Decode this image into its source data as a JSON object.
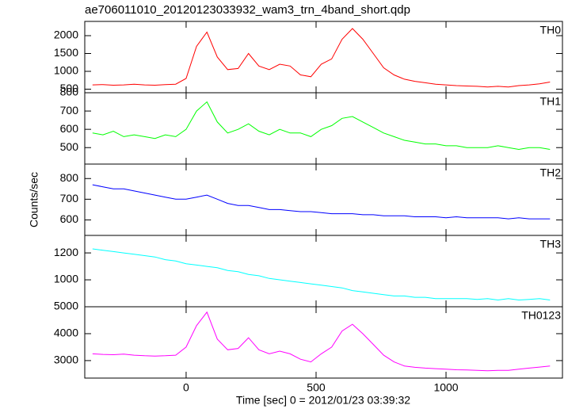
{
  "chart_data": {
    "type": "line",
    "title": "ae706011010_20120123033932_wam3_trn_4band_short.qdp",
    "xlabel": "Time [sec] 0 = 2012/01/23 03:39:32",
    "ylabel": "Counts/sec",
    "x": [
      -360,
      -320,
      -280,
      -240,
      -200,
      -160,
      -120,
      -80,
      -40,
      0,
      40,
      80,
      120,
      160,
      200,
      240,
      280,
      320,
      360,
      400,
      440,
      480,
      520,
      560,
      600,
      640,
      680,
      720,
      760,
      800,
      840,
      880,
      920,
      960,
      1000,
      1040,
      1080,
      1120,
      1160,
      1200,
      1240,
      1280,
      1320,
      1360,
      1400
    ],
    "xlim": [
      -390,
      1448
    ],
    "xticks": [
      0,
      500,
      1000
    ],
    "panels": [
      {
        "name": "TH0",
        "color": "#ff0000",
        "ylim": [
          400,
          2400
        ],
        "yticks": [
          500,
          1000,
          1500,
          2000
        ],
        "values": [
          620,
          630,
          610,
          620,
          640,
          620,
          610,
          630,
          640,
          800,
          1700,
          2100,
          1400,
          1050,
          1080,
          1500,
          1150,
          1050,
          1200,
          1150,
          900,
          850,
          1200,
          1350,
          1900,
          2200,
          1900,
          1500,
          1100,
          900,
          780,
          720,
          680,
          640,
          620,
          600,
          590,
          580,
          560,
          580,
          560,
          600,
          620,
          650,
          700
        ]
      },
      {
        "name": "TH1",
        "color": "#00ff00",
        "ylim": [
          410,
          800
        ],
        "yticks": [
          500,
          600,
          700,
          800
        ],
        "values": [
          580,
          570,
          590,
          560,
          570,
          560,
          550,
          570,
          560,
          600,
          700,
          750,
          640,
          580,
          600,
          630,
          590,
          570,
          600,
          580,
          580,
          560,
          600,
          620,
          660,
          670,
          640,
          610,
          580,
          560,
          540,
          530,
          520,
          520,
          510,
          510,
          500,
          500,
          500,
          510,
          500,
          490,
          500,
          500,
          490
        ]
      },
      {
        "name": "TH2",
        "color": "#0000ff",
        "ylim": [
          525,
          870
        ],
        "yticks": [
          600,
          700,
          800
        ],
        "values": [
          770,
          760,
          750,
          750,
          740,
          730,
          720,
          710,
          700,
          700,
          710,
          720,
          700,
          680,
          670,
          670,
          660,
          650,
          650,
          645,
          640,
          640,
          635,
          630,
          630,
          630,
          625,
          625,
          620,
          620,
          620,
          615,
          615,
          615,
          610,
          615,
          610,
          610,
          610,
          610,
          605,
          610,
          605,
          605,
          605
        ]
      },
      {
        "name": "TH3",
        "color": "#00ffff",
        "ylim": [
          800,
          1330
        ],
        "yticks": [
          1000,
          1200
        ],
        "values": [
          1230,
          1220,
          1210,
          1200,
          1190,
          1180,
          1170,
          1150,
          1140,
          1120,
          1110,
          1100,
          1090,
          1070,
          1060,
          1040,
          1030,
          1010,
          1000,
          990,
          980,
          970,
          960,
          950,
          940,
          920,
          910,
          900,
          890,
          880,
          880,
          870,
          870,
          860,
          860,
          860,
          860,
          855,
          860,
          850,
          860,
          850,
          855,
          860,
          850
        ]
      },
      {
        "name": "TH0123",
        "color": "#ff00ff",
        "ylim": [
          2350,
          5000
        ],
        "yticks": [
          3000,
          4000,
          5000
        ],
        "values": [
          3250,
          3230,
          3220,
          3240,
          3200,
          3180,
          3170,
          3180,
          3200,
          3500,
          4300,
          4800,
          3800,
          3400,
          3450,
          3850,
          3400,
          3250,
          3350,
          3250,
          3050,
          2950,
          3250,
          3500,
          4100,
          4350,
          4000,
          3600,
          3200,
          2950,
          2800,
          2750,
          2720,
          2700,
          2680,
          2660,
          2650,
          2640,
          2620,
          2640,
          2640,
          2680,
          2720,
          2760,
          2800
        ]
      }
    ]
  }
}
